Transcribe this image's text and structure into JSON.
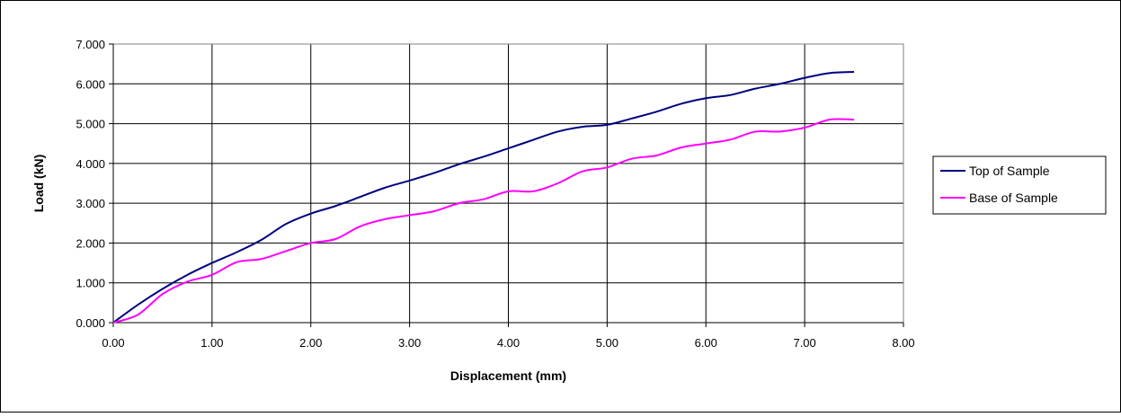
{
  "chart_data": {
    "type": "line",
    "title": "",
    "xlabel": "Displacement (mm)",
    "ylabel": "Load (kN)",
    "xlim": [
      0,
      8
    ],
    "ylim": [
      0,
      7
    ],
    "x_ticks": [
      0,
      1,
      2,
      3,
      4,
      5,
      6,
      7,
      8
    ],
    "y_ticks": [
      0,
      1,
      2,
      3,
      4,
      5,
      6,
      7
    ],
    "x_tick_labels": [
      "0.00",
      "1.00",
      "2.00",
      "3.00",
      "4.00",
      "5.00",
      "6.00",
      "7.00",
      "8.00"
    ],
    "y_tick_labels": [
      "0.000",
      "1.000",
      "2.000",
      "3.000",
      "4.000",
      "5.000",
      "6.000",
      "7.000"
    ],
    "grid": true,
    "legend_position": "right",
    "series": [
      {
        "name": "Top of Sample",
        "color": "#000080",
        "x": [
          0.0,
          0.25,
          0.5,
          0.75,
          1.0,
          1.25,
          1.5,
          1.75,
          2.0,
          2.25,
          2.5,
          2.75,
          3.0,
          3.25,
          3.5,
          3.75,
          4.0,
          4.25,
          4.5,
          4.75,
          5.0,
          5.25,
          5.5,
          5.75,
          6.0,
          6.25,
          6.5,
          6.75,
          7.0,
          7.25,
          7.5
        ],
        "y": [
          0.0,
          0.45,
          0.85,
          1.2,
          1.5,
          1.77,
          2.08,
          2.48,
          2.74,
          2.93,
          3.16,
          3.39,
          3.57,
          3.76,
          3.98,
          4.17,
          4.38,
          4.59,
          4.8,
          4.92,
          4.97,
          5.13,
          5.3,
          5.5,
          5.64,
          5.72,
          5.88,
          6.0,
          6.15,
          6.27,
          6.3
        ]
      },
      {
        "name": "Base of Sample",
        "color": "#FF00FF",
        "x": [
          0.0,
          0.25,
          0.5,
          0.75,
          1.0,
          1.25,
          1.5,
          1.75,
          2.0,
          2.25,
          2.5,
          2.75,
          3.0,
          3.25,
          3.5,
          3.75,
          4.0,
          4.25,
          4.5,
          4.75,
          5.0,
          5.25,
          5.5,
          5.75,
          6.0,
          6.25,
          6.5,
          6.75,
          7.0,
          7.25,
          7.5
        ],
        "y": [
          0.0,
          0.2,
          0.72,
          1.03,
          1.2,
          1.52,
          1.6,
          1.8,
          2.0,
          2.1,
          2.42,
          2.6,
          2.7,
          2.8,
          3.0,
          3.1,
          3.3,
          3.3,
          3.5,
          3.8,
          3.9,
          4.12,
          4.2,
          4.4,
          4.5,
          4.6,
          4.8,
          4.8,
          4.9,
          5.1,
          5.1
        ]
      }
    ]
  }
}
